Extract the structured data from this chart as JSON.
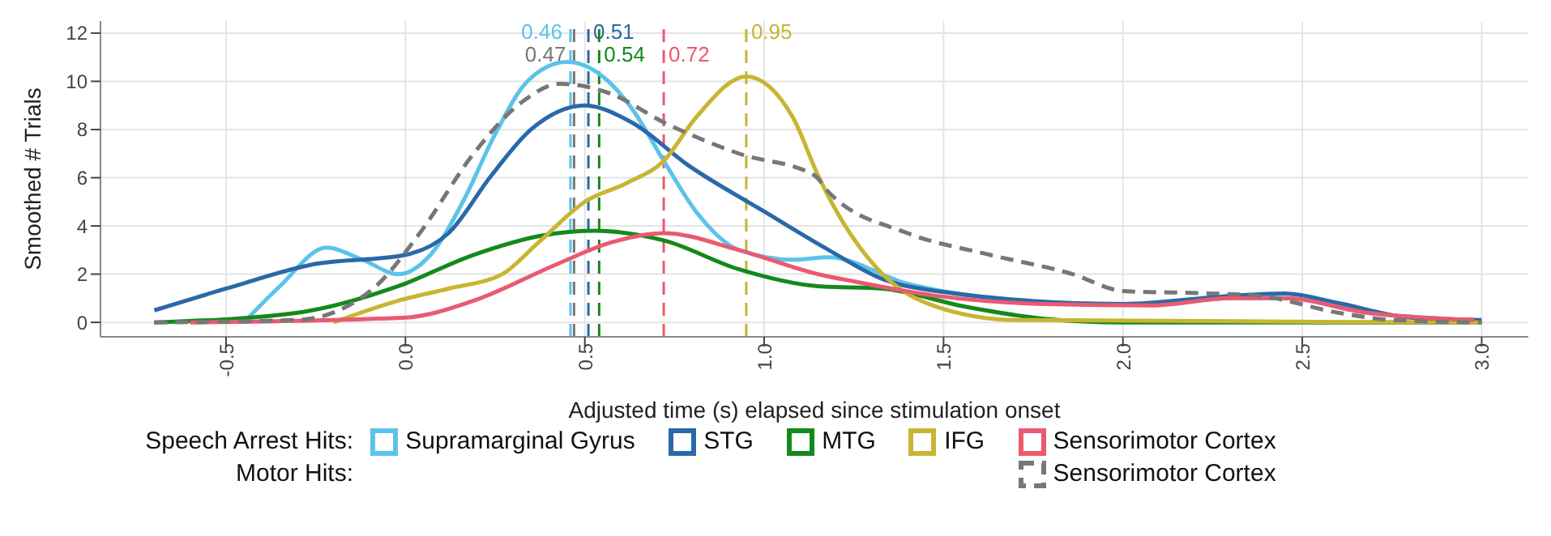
{
  "chart_data": {
    "type": "line",
    "xlabel": "Adjusted time (s) elapsed since stimulation onset",
    "ylabel": "Smoothed # Trials",
    "legend_title": "Speech Arrest Hits:",
    "annotations": [
      "Motor Hits:"
    ],
    "xlim": [
      -0.85,
      3.13
    ],
    "xticks": [
      -0.5,
      {
        "value": 0,
        "label": "0.0"
      },
      0.5,
      {
        "value": 1,
        "label": "1.0"
      },
      1.5,
      {
        "value": 2,
        "label": "2.0"
      },
      2.5,
      {
        "value": 3,
        "label": "3.0"
      }
    ],
    "ylim": [
      -0.6,
      12.5
    ],
    "yticks": [
      0,
      2,
      4,
      6,
      8,
      10,
      12
    ],
    "grid": true,
    "legend": "bottom",
    "line_style": "solid",
    "marker": "none",
    "series": [
      {
        "name": "Supramarginal Gyrus",
        "color": "#5bc3ea",
        "x": [
          -0.45,
          -0.35,
          -0.22,
          -0.12,
          -0.02,
          0.07,
          0.16,
          0.25,
          0.34,
          0.45,
          0.55,
          0.63,
          0.72,
          0.81,
          0.93,
          1.08,
          1.18,
          1.4,
          1.58,
          1.8,
          2.1,
          2.3,
          2.45,
          2.68,
          2.98
        ],
        "values": [
          0,
          1.5,
          3.1,
          2.6,
          2.0,
          2.8,
          5.0,
          7.8,
          10.0,
          10.8,
          10.2,
          8.9,
          6.7,
          4.6,
          3.0,
          2.6,
          2.7,
          1.6,
          1.1,
          0.8,
          0.75,
          1.0,
          1.0,
          0.4,
          0.1
        ]
      },
      {
        "name": "STG",
        "color": "#2a69a8",
        "x": [
          -0.7,
          -0.5,
          -0.26,
          0,
          0.12,
          0.24,
          0.35,
          0.5,
          0.63,
          0.79,
          1.0,
          1.18,
          1.33,
          1.48,
          2.0,
          2.3,
          2.45,
          2.6,
          2.8,
          3.0
        ],
        "values": [
          0.5,
          1.4,
          2.4,
          2.8,
          3.7,
          6.1,
          8.0,
          9.0,
          8.3,
          6.5,
          4.6,
          3.0,
          1.8,
          1.3,
          0.76,
          1.1,
          1.2,
          0.8,
          0.2,
          0.1
        ]
      },
      {
        "name": "MTG",
        "color": "#14891c",
        "x": [
          -0.7,
          -0.3,
          -0.02,
          0.19,
          0.38,
          0.53,
          0.72,
          0.93,
          1.15,
          1.33,
          1.56,
          1.78,
          2.0,
          3.0
        ],
        "values": [
          0,
          0.4,
          1.5,
          2.8,
          3.6,
          3.8,
          3.4,
          2.2,
          1.5,
          1.4,
          0.65,
          0.15,
          0,
          0
        ]
      },
      {
        "name": "IFG",
        "color": "#c8b532",
        "x": [
          -0.2,
          -0.02,
          0.12,
          0.27,
          0.37,
          0.5,
          0.62,
          0.72,
          0.81,
          0.95,
          1.08,
          1.15,
          1.18,
          1.33,
          1.48,
          1.7,
          3.0
        ],
        "values": [
          0,
          0.9,
          1.4,
          2.0,
          3.3,
          5.0,
          5.8,
          6.7,
          8.5,
          10.2,
          8.5,
          6.1,
          5.2,
          2.0,
          0.65,
          0.1,
          0
        ]
      },
      {
        "name": "Sensorimotor Cortex",
        "color": "#ea5a70",
        "x": [
          -0.6,
          0,
          0.19,
          0.42,
          0.57,
          0.72,
          0.93,
          1.15,
          1.25,
          1.48,
          1.78,
          2.08,
          2.3,
          2.45,
          2.68,
          2.98
        ],
        "values": [
          0,
          0.2,
          0.9,
          2.4,
          3.3,
          3.7,
          3.0,
          2.0,
          1.7,
          1.1,
          0.76,
          0.7,
          1.0,
          1.0,
          0.4,
          0.1
        ]
      },
      {
        "name": "Sensorimotor Cortex",
        "color": "#777777",
        "line_style": "dashed",
        "x": [
          -0.7,
          -0.3,
          -0.09,
          0.04,
          0.19,
          0.33,
          0.43,
          0.57,
          0.72,
          0.93,
          1.14,
          1.18,
          1.4,
          1.63,
          1.86,
          2.0,
          2.24,
          2.38,
          2.6,
          2.75,
          3.0
        ],
        "values": [
          0,
          0.1,
          1.4,
          3.7,
          7.0,
          9.2,
          9.9,
          9.5,
          8.3,
          7.0,
          6.1,
          5.4,
          3.7,
          2.8,
          2.0,
          1.3,
          1.2,
          1.1,
          0.4,
          0.1,
          0
        ]
      }
    ],
    "ref_lines": [
      {
        "axis": "x",
        "value": 0.46,
        "label": "0.46",
        "color": "#5bc3ea",
        "line_style": "dashed"
      },
      {
        "axis": "x",
        "value": 0.51,
        "label": "0.51",
        "color": "#2a69a8",
        "line_style": "dashed"
      },
      {
        "axis": "x",
        "value": 0.47,
        "label": "0.47",
        "color": "#777777",
        "line_style": "dashed"
      },
      {
        "axis": "x",
        "value": 0.54,
        "label": "0.54",
        "color": "#14891c",
        "line_style": "dashed"
      },
      {
        "axis": "x",
        "value": 0.72,
        "label": "0.72",
        "color": "#ea5a70",
        "line_style": "dashed"
      },
      {
        "axis": "x",
        "value": 0.95,
        "label": "0.95",
        "color": "#c8b532",
        "line_style": "dashed"
      }
    ]
  }
}
